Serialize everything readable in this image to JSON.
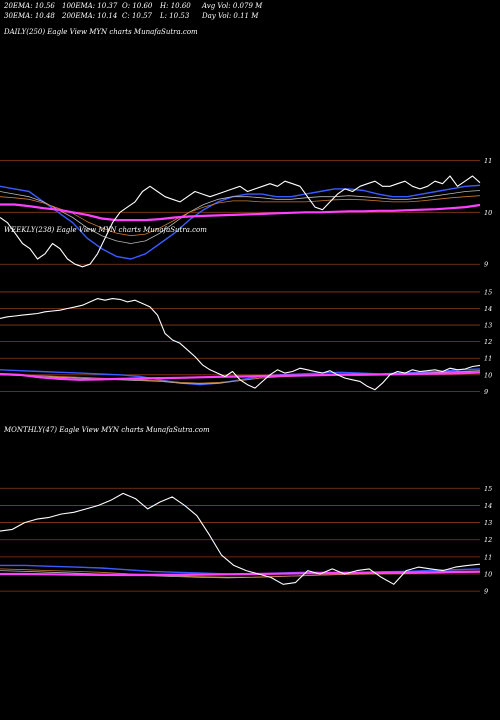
{
  "header": {
    "row1": [
      "20EMA: 10.56",
      "100EMA: 10.37",
      "O: 10.60",
      "H: 10.60",
      "Avg Vol: 0.079 M"
    ],
    "row2": [
      "30EMA: 10.48",
      "200EMA: 10.14",
      "C: 10.57",
      "L: 10.53",
      "Day Vol: 0.11 M"
    ]
  },
  "colors": {
    "background": "#000000",
    "gridline": "#8B3A1A",
    "price": "#ffffff",
    "ema_blue": "#3a5bff",
    "ema_magenta": "#ff40ff",
    "ema_gray": "#b8b8b8",
    "ema_orange": "#c87a30",
    "ema_green": "#4a8a4a"
  },
  "chart_data": [
    {
      "type": "line",
      "title": "DAILY(250) Eagle  View  MYN  charts MunafaSutra.com",
      "y_ticks": [
        "11",
        "10",
        "9"
      ],
      "y_tick_values": [
        11,
        10,
        9
      ],
      "ylim": [
        8.6,
        11.2
      ],
      "series": [
        {
          "role": "price",
          "values": [
            9.9,
            9.8,
            9.6,
            9.4,
            9.3,
            9.1,
            9.2,
            9.4,
            9.3,
            9.1,
            9.0,
            8.95,
            9.0,
            9.2,
            9.5,
            9.8,
            10.0,
            10.1,
            10.2,
            10.4,
            10.5,
            10.4,
            10.3,
            10.25,
            10.2,
            10.3,
            10.4,
            10.35,
            10.3,
            10.35,
            10.4,
            10.45,
            10.5,
            10.4,
            10.45,
            10.5,
            10.55,
            10.5,
            10.6,
            10.55,
            10.5,
            10.3,
            10.1,
            10.05,
            10.2,
            10.35,
            10.45,
            10.4,
            10.5,
            10.55,
            10.6,
            10.5,
            10.5,
            10.55,
            10.6,
            10.5,
            10.45,
            10.5,
            10.6,
            10.55,
            10.7,
            10.5,
            10.6,
            10.7,
            10.57
          ]
        },
        {
          "role": "ema-blue",
          "values": [
            10.5,
            10.45,
            10.4,
            10.2,
            10.0,
            9.8,
            9.5,
            9.3,
            9.15,
            9.1,
            9.2,
            9.4,
            9.6,
            9.85,
            10.05,
            10.2,
            10.3,
            10.35,
            10.35,
            10.3,
            10.3,
            10.35,
            10.4,
            10.45,
            10.45,
            10.42,
            10.35,
            10.3,
            10.3,
            10.35,
            10.4,
            10.45,
            10.5,
            10.52
          ]
        },
        {
          "role": "ema-gray",
          "values": [
            10.4,
            10.35,
            10.3,
            10.2,
            10.05,
            9.9,
            9.7,
            9.55,
            9.45,
            9.4,
            9.45,
            9.6,
            9.8,
            10.0,
            10.15,
            10.25,
            10.3,
            10.3,
            10.28,
            10.25,
            10.25,
            10.28,
            10.3,
            10.3,
            10.32,
            10.3,
            10.28,
            10.25,
            10.25,
            10.28,
            10.32,
            10.36,
            10.4,
            10.42
          ]
        },
        {
          "role": "ema-orange",
          "values": [
            10.3,
            10.28,
            10.25,
            10.18,
            10.08,
            9.98,
            9.82,
            9.7,
            9.6,
            9.55,
            9.58,
            9.7,
            9.85,
            10.0,
            10.1,
            10.18,
            10.22,
            10.22,
            10.2,
            10.2,
            10.2,
            10.2,
            10.22,
            10.24,
            10.25,
            10.24,
            10.22,
            10.2,
            10.2,
            10.22,
            10.25,
            10.28,
            10.3,
            10.32
          ]
        },
        {
          "role": "ema-magenta",
          "values": [
            10.15,
            10.15,
            10.12,
            10.08,
            10.05,
            10.0,
            9.95,
            9.88,
            9.85,
            9.85,
            9.85,
            9.87,
            9.9,
            9.92,
            9.93,
            9.94,
            9.95,
            9.96,
            9.97,
            9.98,
            9.99,
            10.0,
            10.0,
            10.01,
            10.02,
            10.02,
            10.03,
            10.03,
            10.04,
            10.05,
            10.06,
            10.08,
            10.1,
            10.14
          ]
        }
      ]
    },
    {
      "type": "line",
      "title": "WEEKLY(238) Eagle  View  MYN  charts MunafaSutra.com",
      "y_ticks": [
        "15",
        "14",
        "13",
        "12",
        "11",
        "10",
        "9"
      ],
      "y_tick_values": [
        15,
        14,
        13,
        12,
        11,
        10,
        9
      ],
      "ylim": [
        8.6,
        15.6
      ],
      "series": [
        {
          "role": "price",
          "values": [
            13.4,
            13.5,
            13.55,
            13.6,
            13.65,
            13.7,
            13.8,
            13.85,
            13.9,
            14.0,
            14.1,
            14.2,
            14.4,
            14.6,
            14.5,
            14.6,
            14.55,
            14.4,
            14.5,
            14.3,
            14.1,
            13.6,
            12.5,
            12.1,
            11.9,
            11.5,
            11.1,
            10.6,
            10.3,
            10.1,
            9.9,
            10.2,
            9.7,
            9.4,
            9.2,
            9.6,
            10.0,
            10.3,
            10.1,
            10.2,
            10.4,
            10.3,
            10.2,
            10.1,
            10.25,
            10.0,
            9.8,
            9.7,
            9.6,
            9.3,
            9.1,
            9.5,
            10.0,
            10.2,
            10.1,
            10.3,
            10.2,
            10.25,
            10.3,
            10.2,
            10.4,
            10.3,
            10.35,
            10.5,
            10.57
          ]
        },
        {
          "role": "ema-blue",
          "values": [
            10.3,
            10.25,
            10.2,
            10.15,
            10.1,
            10.05,
            10.0,
            9.9,
            9.7,
            9.5,
            9.4,
            9.5,
            9.7,
            9.9,
            10.0,
            10.05,
            10.1,
            10.15,
            10.1,
            10.05,
            10.1,
            10.15,
            10.2,
            10.3,
            10.35
          ]
        },
        {
          "role": "ema-gray",
          "values": [
            10.0,
            9.95,
            9.9,
            9.85,
            9.8,
            9.75,
            9.7,
            9.65,
            9.6,
            9.5,
            9.45,
            9.5,
            9.65,
            9.8,
            9.9,
            9.95,
            10.0,
            10.05,
            10.05,
            10.05,
            10.08,
            10.1,
            10.15,
            10.2,
            10.25
          ]
        },
        {
          "role": "ema-orange",
          "values": [
            10.05,
            10.0,
            9.95,
            9.9,
            9.85,
            9.8,
            9.75,
            9.7,
            9.65,
            9.55,
            9.5,
            9.55,
            9.65,
            9.8,
            9.88,
            9.92,
            9.98,
            10.0,
            10.0,
            10.02,
            10.05,
            10.08,
            10.1,
            10.15,
            10.2
          ]
        },
        {
          "role": "ema-magenta",
          "values": [
            10.05,
            10.0,
            9.85,
            9.75,
            9.7,
            9.72,
            9.75,
            9.78,
            9.8,
            9.82,
            9.85,
            9.88,
            9.9,
            9.92,
            9.95,
            9.96,
            9.98,
            10.0,
            10.0,
            10.02,
            10.04,
            10.06,
            10.08,
            10.1,
            10.14
          ]
        }
      ]
    },
    {
      "type": "line",
      "title": "MONTHLY(47) Eagle  View  MYN  charts MunafaSutra.com",
      "y_ticks": [
        "15",
        "14",
        "13",
        "12",
        "11",
        "10",
        "9"
      ],
      "y_tick_values": [
        15,
        14,
        13,
        12,
        11,
        10,
        9
      ],
      "ylim": [
        8.6,
        15.6
      ],
      "series": [
        {
          "role": "price",
          "values": [
            12.5,
            12.6,
            13.0,
            13.2,
            13.3,
            13.5,
            13.6,
            13.8,
            14.0,
            14.3,
            14.7,
            14.4,
            13.8,
            14.2,
            14.5,
            14.0,
            13.4,
            12.3,
            11.1,
            10.5,
            10.2,
            10.0,
            9.8,
            9.4,
            9.5,
            10.2,
            10.0,
            10.3,
            10.0,
            10.2,
            10.3,
            9.8,
            9.4,
            10.2,
            10.4,
            10.3,
            10.2,
            10.4,
            10.5,
            10.57
          ]
        },
        {
          "role": "ema-blue",
          "values": [
            10.5,
            10.5,
            10.45,
            10.4,
            10.35,
            10.25,
            10.15,
            10.1,
            10.05,
            10.0,
            10.0,
            10.05,
            10.1,
            10.1,
            10.1,
            10.12,
            10.15,
            10.2,
            10.25,
            10.3
          ]
        },
        {
          "role": "ema-gray",
          "values": [
            10.2,
            10.15,
            10.1,
            10.05,
            10.0,
            9.95,
            9.9,
            9.85,
            9.8,
            9.78,
            9.8,
            9.85,
            9.9,
            9.95,
            10.0,
            10.02,
            10.05,
            10.08,
            10.12,
            10.15
          ]
        },
        {
          "role": "ema-orange",
          "values": [
            10.3,
            10.25,
            10.2,
            10.15,
            10.1,
            10.02,
            9.95,
            9.9,
            9.85,
            9.82,
            9.82,
            9.86,
            9.9,
            9.95,
            9.98,
            10.0,
            10.02,
            10.05,
            10.08,
            10.1
          ]
        },
        {
          "role": "ema-magenta",
          "values": [
            10.0,
            10.0,
            9.98,
            9.96,
            9.95,
            9.94,
            9.94,
            9.95,
            9.96,
            9.98,
            10.0,
            10.02,
            10.04,
            10.05,
            10.06,
            10.08,
            10.09,
            10.1,
            10.12,
            10.14
          ]
        }
      ]
    }
  ]
}
